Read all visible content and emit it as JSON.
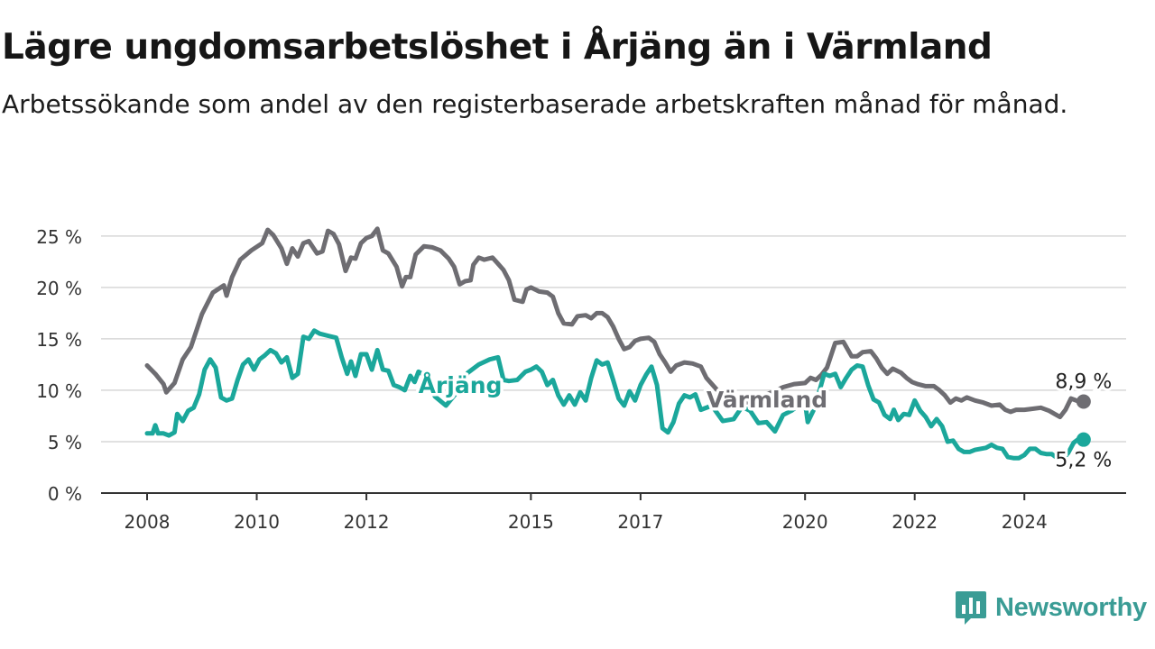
{
  "title": "Lägre ungdomsarbetslöshet i Årjäng än i Värmland",
  "subtitle": "Arbetssökande som andel av den registerbaserade arbetskraften månad för månad.",
  "brand": {
    "name": "Newsworthy",
    "icon": "newsworthy-logo-icon",
    "color": "#3a9c95"
  },
  "chart_data": {
    "type": "line",
    "title": "Lägre ungdomsarbetslöshet i Årjäng än i Värmland",
    "xlabel": "",
    "ylabel": "",
    "ylim": [
      0,
      27
    ],
    "xlim": [
      2008,
      2025.3
    ],
    "grid": true,
    "y_ticks": [
      0,
      5,
      10,
      15,
      20,
      25
    ],
    "y_tick_labels": [
      "0 %",
      "5 %",
      "10 %",
      "15 %",
      "20 %",
      "25 %"
    ],
    "x_ticks": [
      2008,
      2010,
      2012,
      2015,
      2017,
      2020,
      2022,
      2024
    ],
    "x_tick_labels": [
      "2008",
      "2010",
      "2012",
      "2015",
      "2017",
      "2020",
      "2022",
      "2024"
    ],
    "series": [
      {
        "name": "Värmland",
        "color": "#6e6d72",
        "end_label": "8,9 %",
        "points": [
          [
            2008.0,
            12.4
          ],
          [
            2008.15,
            11.6
          ],
          [
            2008.3,
            10.6
          ],
          [
            2008.35,
            9.8
          ],
          [
            2008.5,
            10.7
          ],
          [
            2008.65,
            13.0
          ],
          [
            2008.8,
            14.2
          ],
          [
            2009.0,
            17.4
          ],
          [
            2009.2,
            19.5
          ],
          [
            2009.4,
            20.2
          ],
          [
            2009.45,
            19.2
          ],
          [
            2009.55,
            21.0
          ],
          [
            2009.7,
            22.7
          ],
          [
            2009.9,
            23.6
          ],
          [
            2010.1,
            24.3
          ],
          [
            2010.2,
            25.6
          ],
          [
            2010.3,
            25.1
          ],
          [
            2010.45,
            23.8
          ],
          [
            2010.55,
            22.3
          ],
          [
            2010.65,
            23.8
          ],
          [
            2010.75,
            23.0
          ],
          [
            2010.85,
            24.3
          ],
          [
            2010.95,
            24.5
          ],
          [
            2011.1,
            23.3
          ],
          [
            2011.2,
            23.5
          ],
          [
            2011.3,
            25.5
          ],
          [
            2011.4,
            25.2
          ],
          [
            2011.5,
            24.2
          ],
          [
            2011.62,
            21.6
          ],
          [
            2011.72,
            22.9
          ],
          [
            2011.8,
            22.8
          ],
          [
            2011.9,
            24.3
          ],
          [
            2012.0,
            24.8
          ],
          [
            2012.1,
            25.0
          ],
          [
            2012.2,
            25.7
          ],
          [
            2012.3,
            23.6
          ],
          [
            2012.4,
            23.3
          ],
          [
            2012.55,
            22.0
          ],
          [
            2012.65,
            20.1
          ],
          [
            2012.72,
            21.0
          ],
          [
            2012.8,
            21.0
          ],
          [
            2012.9,
            23.2
          ],
          [
            2013.05,
            24.0
          ],
          [
            2013.2,
            23.9
          ],
          [
            2013.35,
            23.6
          ],
          [
            2013.5,
            22.8
          ],
          [
            2013.6,
            22.0
          ],
          [
            2013.7,
            20.3
          ],
          [
            2013.8,
            20.6
          ],
          [
            2013.9,
            20.7
          ],
          [
            2013.95,
            22.2
          ],
          [
            2014.05,
            22.9
          ],
          [
            2014.15,
            22.7
          ],
          [
            2014.3,
            22.9
          ],
          [
            2014.4,
            22.3
          ],
          [
            2014.5,
            21.7
          ],
          [
            2014.6,
            20.7
          ],
          [
            2014.7,
            18.8
          ],
          [
            2014.85,
            18.6
          ],
          [
            2014.92,
            19.8
          ],
          [
            2015.0,
            20.0
          ],
          [
            2015.15,
            19.6
          ],
          [
            2015.3,
            19.5
          ],
          [
            2015.4,
            19.1
          ],
          [
            2015.5,
            17.5
          ],
          [
            2015.6,
            16.5
          ],
          [
            2015.75,
            16.4
          ],
          [
            2015.85,
            17.2
          ],
          [
            2016.0,
            17.3
          ],
          [
            2016.1,
            17.0
          ],
          [
            2016.2,
            17.5
          ],
          [
            2016.3,
            17.5
          ],
          [
            2016.4,
            17.1
          ],
          [
            2016.5,
            16.2
          ],
          [
            2016.6,
            15.0
          ],
          [
            2016.7,
            14.0
          ],
          [
            2016.8,
            14.2
          ],
          [
            2016.9,
            14.8
          ],
          [
            2017.0,
            15.0
          ],
          [
            2017.15,
            15.1
          ],
          [
            2017.25,
            14.7
          ],
          [
            2017.35,
            13.5
          ],
          [
            2017.45,
            12.7
          ],
          [
            2017.55,
            11.8
          ],
          [
            2017.65,
            12.4
          ],
          [
            2017.8,
            12.7
          ],
          [
            2017.95,
            12.6
          ],
          [
            2018.1,
            12.3
          ],
          [
            2018.2,
            11.2
          ],
          [
            2018.4,
            10.0
          ],
          [
            2018.6,
            9.2
          ],
          [
            2018.8,
            8.7
          ],
          [
            2019.0,
            8.9
          ],
          [
            2019.2,
            9.4
          ],
          [
            2019.4,
            9.8
          ],
          [
            2019.6,
            10.3
          ],
          [
            2019.8,
            10.6
          ],
          [
            2020.0,
            10.7
          ],
          [
            2020.1,
            11.2
          ],
          [
            2020.2,
            11.0
          ],
          [
            2020.3,
            11.5
          ],
          [
            2020.4,
            12.2
          ],
          [
            2020.55,
            14.6
          ],
          [
            2020.7,
            14.7
          ],
          [
            2020.85,
            13.3
          ],
          [
            2020.95,
            13.3
          ],
          [
            2021.05,
            13.7
          ],
          [
            2021.2,
            13.8
          ],
          [
            2021.3,
            13.1
          ],
          [
            2021.4,
            12.2
          ],
          [
            2021.5,
            11.6
          ],
          [
            2021.6,
            12.1
          ],
          [
            2021.75,
            11.7
          ],
          [
            2021.85,
            11.2
          ],
          [
            2021.95,
            10.8
          ],
          [
            2022.05,
            10.6
          ],
          [
            2022.2,
            10.4
          ],
          [
            2022.35,
            10.4
          ],
          [
            2022.45,
            10.0
          ],
          [
            2022.55,
            9.5
          ],
          [
            2022.65,
            8.8
          ],
          [
            2022.75,
            9.2
          ],
          [
            2022.85,
            9.0
          ],
          [
            2022.95,
            9.3
          ],
          [
            2023.1,
            9.0
          ],
          [
            2023.25,
            8.8
          ],
          [
            2023.4,
            8.5
          ],
          [
            2023.55,
            8.6
          ],
          [
            2023.65,
            8.1
          ],
          [
            2023.75,
            7.9
          ],
          [
            2023.85,
            8.1
          ],
          [
            2024.0,
            8.1
          ],
          [
            2024.15,
            8.2
          ],
          [
            2024.3,
            8.3
          ],
          [
            2024.45,
            8.0
          ],
          [
            2024.55,
            7.7
          ],
          [
            2024.65,
            7.4
          ],
          [
            2024.75,
            8.1
          ],
          [
            2024.85,
            9.2
          ],
          [
            2025.0,
            8.9
          ],
          [
            2025.08,
            8.9
          ]
        ]
      },
      {
        "name": "Årjäng",
        "color": "#1ba79b",
        "end_label": "5,2 %",
        "points": [
          [
            2008.0,
            5.8
          ],
          [
            2008.1,
            5.8
          ],
          [
            2008.15,
            6.6
          ],
          [
            2008.2,
            5.8
          ],
          [
            2008.3,
            5.8
          ],
          [
            2008.4,
            5.6
          ],
          [
            2008.5,
            5.9
          ],
          [
            2008.55,
            7.7
          ],
          [
            2008.65,
            7.0
          ],
          [
            2008.75,
            8.0
          ],
          [
            2008.85,
            8.3
          ],
          [
            2008.95,
            9.6
          ],
          [
            2009.05,
            12.0
          ],
          [
            2009.15,
            13.0
          ],
          [
            2009.25,
            12.2
          ],
          [
            2009.35,
            9.3
          ],
          [
            2009.45,
            9.0
          ],
          [
            2009.55,
            9.2
          ],
          [
            2009.65,
            11.0
          ],
          [
            2009.75,
            12.5
          ],
          [
            2009.85,
            13.0
          ],
          [
            2009.95,
            12.0
          ],
          [
            2010.05,
            13.0
          ],
          [
            2010.15,
            13.4
          ],
          [
            2010.25,
            13.9
          ],
          [
            2010.35,
            13.6
          ],
          [
            2010.45,
            12.7
          ],
          [
            2010.55,
            13.2
          ],
          [
            2010.65,
            11.2
          ],
          [
            2010.75,
            11.6
          ],
          [
            2010.85,
            15.2
          ],
          [
            2010.95,
            15.0
          ],
          [
            2011.05,
            15.8
          ],
          [
            2011.15,
            15.5
          ],
          [
            2011.3,
            15.3
          ],
          [
            2011.45,
            15.1
          ],
          [
            2011.55,
            13.2
          ],
          [
            2011.65,
            11.6
          ],
          [
            2011.72,
            12.8
          ],
          [
            2011.8,
            11.4
          ],
          [
            2011.9,
            13.5
          ],
          [
            2012.0,
            13.5
          ],
          [
            2012.1,
            12.0
          ],
          [
            2012.2,
            13.9
          ],
          [
            2012.3,
            12.0
          ],
          [
            2012.4,
            11.9
          ],
          [
            2012.5,
            10.5
          ],
          [
            2012.6,
            10.3
          ],
          [
            2012.7,
            10.0
          ],
          [
            2012.8,
            11.4
          ],
          [
            2012.88,
            10.8
          ],
          [
            2012.95,
            11.8
          ],
          [
            2013.05,
            11.5
          ],
          [
            2013.25,
            9.4
          ],
          [
            2013.45,
            8.5
          ],
          [
            2013.65,
            9.8
          ],
          [
            2013.85,
            11.7
          ],
          [
            2014.05,
            12.5
          ],
          [
            2014.25,
            13.0
          ],
          [
            2014.4,
            13.2
          ],
          [
            2014.5,
            11.0
          ],
          [
            2014.6,
            10.9
          ],
          [
            2014.75,
            11.0
          ],
          [
            2014.9,
            11.8
          ],
          [
            2015.0,
            12.0
          ],
          [
            2015.1,
            12.3
          ],
          [
            2015.2,
            11.8
          ],
          [
            2015.3,
            10.5
          ],
          [
            2015.4,
            11.0
          ],
          [
            2015.5,
            9.5
          ],
          [
            2015.6,
            8.6
          ],
          [
            2015.7,
            9.5
          ],
          [
            2015.8,
            8.6
          ],
          [
            2015.9,
            9.8
          ],
          [
            2016.0,
            9.0
          ],
          [
            2016.1,
            11.2
          ],
          [
            2016.2,
            12.9
          ],
          [
            2016.3,
            12.5
          ],
          [
            2016.4,
            12.7
          ],
          [
            2016.5,
            11.0
          ],
          [
            2016.6,
            9.2
          ],
          [
            2016.7,
            8.5
          ],
          [
            2016.8,
            9.9
          ],
          [
            2016.9,
            9.0
          ],
          [
            2017.0,
            10.5
          ],
          [
            2017.1,
            11.5
          ],
          [
            2017.2,
            12.3
          ],
          [
            2017.3,
            10.5
          ],
          [
            2017.4,
            6.3
          ],
          [
            2017.5,
            5.9
          ],
          [
            2017.6,
            6.9
          ],
          [
            2017.7,
            8.7
          ],
          [
            2017.8,
            9.5
          ],
          [
            2017.9,
            9.3
          ],
          [
            2018.0,
            9.6
          ],
          [
            2018.1,
            8.1
          ],
          [
            2018.3,
            8.5
          ],
          [
            2018.5,
            7.0
          ],
          [
            2018.7,
            7.2
          ],
          [
            2018.85,
            8.4
          ],
          [
            2019.0,
            8.0
          ],
          [
            2019.15,
            6.8
          ],
          [
            2019.3,
            6.9
          ],
          [
            2019.45,
            6.0
          ],
          [
            2019.6,
            7.6
          ],
          [
            2019.75,
            8.0
          ],
          [
            2019.9,
            8.6
          ],
          [
            2020.0,
            8.8
          ],
          [
            2020.05,
            6.9
          ],
          [
            2020.15,
            8.0
          ],
          [
            2020.25,
            9.7
          ],
          [
            2020.35,
            11.6
          ],
          [
            2020.45,
            11.4
          ],
          [
            2020.55,
            11.6
          ],
          [
            2020.65,
            10.3
          ],
          [
            2020.75,
            11.2
          ],
          [
            2020.85,
            12.0
          ],
          [
            2020.95,
            12.4
          ],
          [
            2021.05,
            12.3
          ],
          [
            2021.15,
            10.5
          ],
          [
            2021.25,
            9.1
          ],
          [
            2021.35,
            8.8
          ],
          [
            2021.45,
            7.6
          ],
          [
            2021.55,
            7.2
          ],
          [
            2021.62,
            8.1
          ],
          [
            2021.7,
            7.1
          ],
          [
            2021.8,
            7.7
          ],
          [
            2021.9,
            7.6
          ],
          [
            2022.0,
            9.0
          ],
          [
            2022.1,
            8.0
          ],
          [
            2022.2,
            7.4
          ],
          [
            2022.3,
            6.5
          ],
          [
            2022.4,
            7.2
          ],
          [
            2022.5,
            6.5
          ],
          [
            2022.6,
            5.0
          ],
          [
            2022.7,
            5.1
          ],
          [
            2022.8,
            4.3
          ],
          [
            2022.9,
            4.0
          ],
          [
            2023.0,
            4.0
          ],
          [
            2023.1,
            4.2
          ],
          [
            2023.2,
            4.3
          ],
          [
            2023.3,
            4.4
          ],
          [
            2023.4,
            4.7
          ],
          [
            2023.5,
            4.4
          ],
          [
            2023.6,
            4.3
          ],
          [
            2023.7,
            3.5
          ],
          [
            2023.8,
            3.4
          ],
          [
            2023.9,
            3.4
          ],
          [
            2024.0,
            3.7
          ],
          [
            2024.1,
            4.3
          ],
          [
            2024.2,
            4.3
          ],
          [
            2024.3,
            3.9
          ],
          [
            2024.4,
            3.8
          ],
          [
            2024.5,
            3.8
          ],
          [
            2024.6,
            3.4
          ],
          [
            2024.7,
            3.3
          ],
          [
            2024.8,
            3.9
          ],
          [
            2024.9,
            4.9
          ],
          [
            2025.0,
            5.3
          ],
          [
            2025.08,
            5.2
          ]
        ]
      }
    ]
  }
}
